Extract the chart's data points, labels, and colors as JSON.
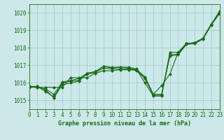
{
  "background_color": "#cce8e8",
  "plot_bg_color": "#cce8e8",
  "grid_color": "#a0c8c8",
  "line_color": "#1a6b1a",
  "title": "Graphe pression niveau de la mer (hPa)",
  "xlim": [
    0,
    23
  ],
  "ylim": [
    1014.5,
    1020.5
  ],
  "yticks": [
    1015,
    1016,
    1017,
    1018,
    1019,
    1020
  ],
  "xticks": [
    0,
    1,
    2,
    3,
    4,
    5,
    6,
    7,
    8,
    9,
    10,
    11,
    12,
    13,
    14,
    15,
    16,
    17,
    18,
    19,
    20,
    21,
    22,
    23
  ],
  "series": [
    [
      1015.8,
      1015.8,
      1015.6,
      1015.15,
      1015.9,
      1016.0,
      1016.1,
      1016.55,
      1016.65,
      1016.95,
      1016.85,
      1016.9,
      1016.85,
      1016.75,
      1016.0,
      1015.25,
      1015.25,
      1017.75,
      1017.75,
      1018.25,
      1018.3,
      1018.55,
      1019.35,
      1019.95
    ],
    [
      1015.8,
      1015.8,
      1015.5,
      1015.2,
      1016.0,
      1016.1,
      1016.15,
      1016.5,
      1016.6,
      1016.85,
      1016.8,
      1016.8,
      1016.8,
      1016.7,
      1016.25,
      1015.3,
      1015.3,
      1017.55,
      1017.6,
      1018.2,
      1018.25,
      1018.5,
      1019.3,
      1019.98
    ],
    [
      1015.8,
      1015.75,
      1015.65,
      1015.35,
      1016.05,
      1016.15,
      1016.25,
      1016.55,
      1016.65,
      1016.95,
      1016.9,
      1016.9,
      1016.9,
      1016.8,
      1016.25,
      1015.35,
      1015.35,
      1017.6,
      1017.65,
      1018.25,
      1018.3,
      1018.55,
      1019.35,
      1020.05
    ],
    [
      1015.75,
      1015.75,
      1015.75,
      1015.75,
      1015.75,
      1016.3,
      1016.3,
      1016.3,
      1016.55,
      1016.7,
      1016.7,
      1016.75,
      1016.75,
      1016.75,
      1016.35,
      1015.35,
      1015.85,
      1016.5,
      1017.75,
      1018.25,
      1018.3,
      1018.55,
      1019.35,
      1020.1
    ]
  ]
}
